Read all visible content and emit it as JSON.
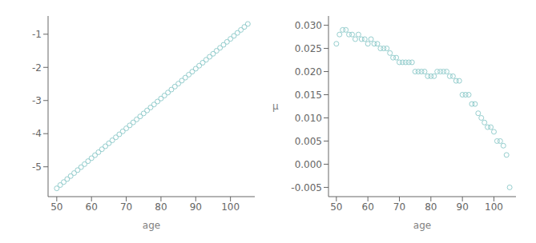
{
  "chart_data": [
    {
      "type": "scatter",
      "x": [
        50,
        51,
        52,
        53,
        54,
        55,
        56,
        57,
        58,
        59,
        60,
        61,
        62,
        63,
        64,
        65,
        66,
        67,
        68,
        69,
        70,
        71,
        72,
        73,
        74,
        75,
        76,
        77,
        78,
        79,
        80,
        81,
        82,
        83,
        84,
        85,
        86,
        87,
        88,
        89,
        90,
        91,
        92,
        93,
        94,
        95,
        96,
        97,
        98,
        99,
        100,
        101,
        102,
        103,
        104,
        105
      ],
      "values": [
        -5.65,
        -5.55,
        -5.46,
        -5.37,
        -5.28,
        -5.19,
        -5.1,
        -5.01,
        -4.92,
        -4.83,
        -4.74,
        -4.65,
        -4.56,
        -4.47,
        -4.38,
        -4.29,
        -4.2,
        -4.11,
        -4.02,
        -3.93,
        -3.84,
        -3.75,
        -3.66,
        -3.57,
        -3.48,
        -3.39,
        -3.3,
        -3.21,
        -3.12,
        -3.03,
        -2.94,
        -2.85,
        -2.76,
        -2.67,
        -2.58,
        -2.49,
        -2.4,
        -2.31,
        -2.22,
        -2.13,
        -2.04,
        -1.95,
        -1.86,
        -1.77,
        -1.68,
        -1.59,
        -1.5,
        -1.41,
        -1.32,
        -1.23,
        -1.14,
        -1.05,
        -0.96,
        -0.87,
        -0.78,
        -0.69
      ],
      "xlabel": "age",
      "xlim": [
        47.5,
        107
      ],
      "ylim": [
        -5.9,
        -0.45
      ],
      "xticks": [
        50,
        60,
        70,
        80,
        90,
        100
      ],
      "yticks": [
        -5,
        -4,
        -3,
        -2,
        -1
      ],
      "color": "#96cece",
      "marker": "circle"
    },
    {
      "type": "scatter",
      "x": [
        50,
        51,
        52,
        53,
        54,
        55,
        56,
        57,
        58,
        59,
        60,
        61,
        62,
        63,
        64,
        65,
        66,
        67,
        68,
        69,
        70,
        71,
        72,
        73,
        74,
        75,
        76,
        77,
        78,
        79,
        80,
        81,
        82,
        83,
        84,
        85,
        86,
        87,
        88,
        89,
        90,
        91,
        92,
        93,
        94,
        95,
        96,
        97,
        98,
        99,
        100,
        101,
        102,
        103,
        104,
        105
      ],
      "values": [
        0.026,
        0.028,
        0.029,
        0.029,
        0.028,
        0.028,
        0.027,
        0.028,
        0.027,
        0.027,
        0.026,
        0.027,
        0.026,
        0.026,
        0.025,
        0.025,
        0.025,
        0.024,
        0.023,
        0.023,
        0.022,
        0.022,
        0.022,
        0.022,
        0.022,
        0.02,
        0.02,
        0.02,
        0.02,
        0.019,
        0.019,
        0.019,
        0.02,
        0.02,
        0.02,
        0.02,
        0.019,
        0.019,
        0.018,
        0.018,
        0.015,
        0.015,
        0.015,
        0.013,
        0.013,
        0.011,
        0.01,
        0.009,
        0.008,
        0.008,
        0.007,
        0.005,
        0.005,
        0.004,
        0.002,
        -0.005
      ],
      "xlabel": "age",
      "ylabel": "μ",
      "xlim": [
        47.5,
        107
      ],
      "ylim": [
        -0.007,
        0.032
      ],
      "xticks": [
        50,
        60,
        70,
        80,
        90,
        100
      ],
      "yticks": [
        -0.005,
        {
          "value": 0,
          "label": "0.000"
        },
        0.005,
        {
          "value": 0.01,
          "label": "0.010"
        },
        0.015,
        {
          "value": 0.02,
          "label": "0.020"
        },
        0.025,
        {
          "value": 0.03,
          "label": "0.030"
        }
      ],
      "color": "#96cece",
      "marker": "circle"
    }
  ]
}
